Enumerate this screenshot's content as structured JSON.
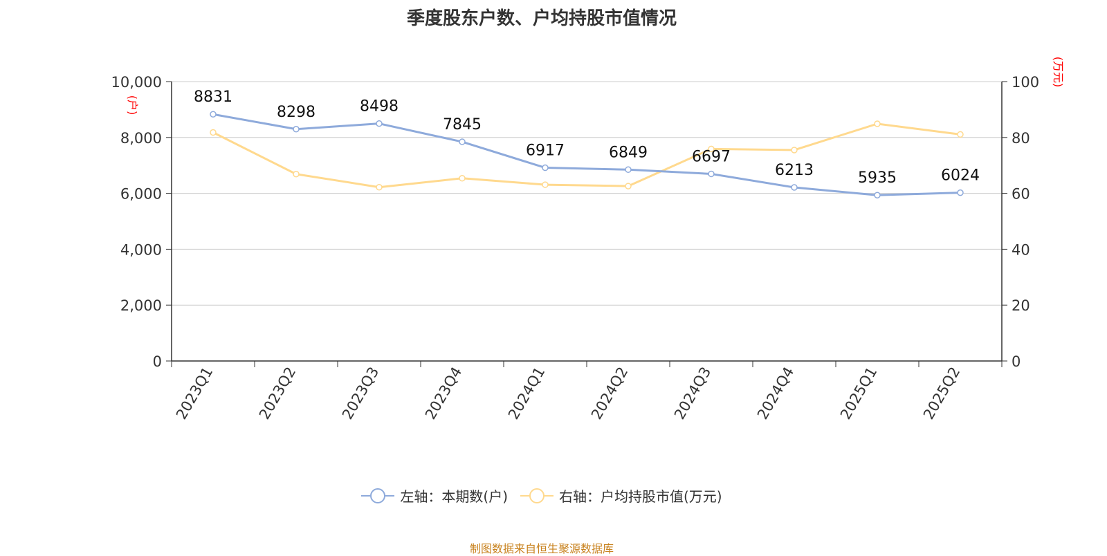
{
  "chart_data": {
    "type": "line",
    "title": "季度股东户数、户均持股市值情况",
    "categories": [
      "2023Q1",
      "2023Q2",
      "2023Q3",
      "2023Q4",
      "2024Q1",
      "2024Q2",
      "2024Q3",
      "2024Q4",
      "2025Q1",
      "2025Q2"
    ],
    "series": [
      {
        "name": "左轴：本期数(户)",
        "axis": "left",
        "color": "#8eaadb",
        "values": [
          8831,
          8298,
          8498,
          7845,
          6917,
          6849,
          6697,
          6213,
          5935,
          6024
        ],
        "data_labels": [
          "8831",
          "8298",
          "8498",
          "7845",
          "6917",
          "6849",
          "6697",
          "6213",
          "5935",
          "6024"
        ]
      },
      {
        "name": "右轴：户均持股市值(万元)",
        "axis": "right",
        "color": "#ffd98e",
        "values": [
          81.8,
          66.9,
          62.2,
          65.4,
          63.1,
          62.6,
          75.9,
          75.5,
          84.9,
          81.1
        ]
      }
    ],
    "left_axis": {
      "unit_label": "(户)",
      "ylim": [
        0,
        10000
      ],
      "ticks": [
        0,
        2000,
        4000,
        6000,
        8000,
        10000
      ],
      "tick_labels": [
        "0",
        "2,000",
        "4,000",
        "6,000",
        "8,000",
        "10,000"
      ]
    },
    "right_axis": {
      "unit_label": "(万元)",
      "ylim": [
        0,
        100
      ],
      "ticks": [
        0,
        20,
        40,
        60,
        80,
        100
      ],
      "tick_labels": [
        "0",
        "20",
        "40",
        "60",
        "80",
        "100"
      ]
    },
    "grid": true,
    "legend_position": "bottom",
    "source": "制图数据来自恒生聚源数据库",
    "colors": {
      "axis_unit": "#ff0000",
      "grid": "#cccccc",
      "axis": "#333333",
      "source": "#c8821e"
    }
  }
}
